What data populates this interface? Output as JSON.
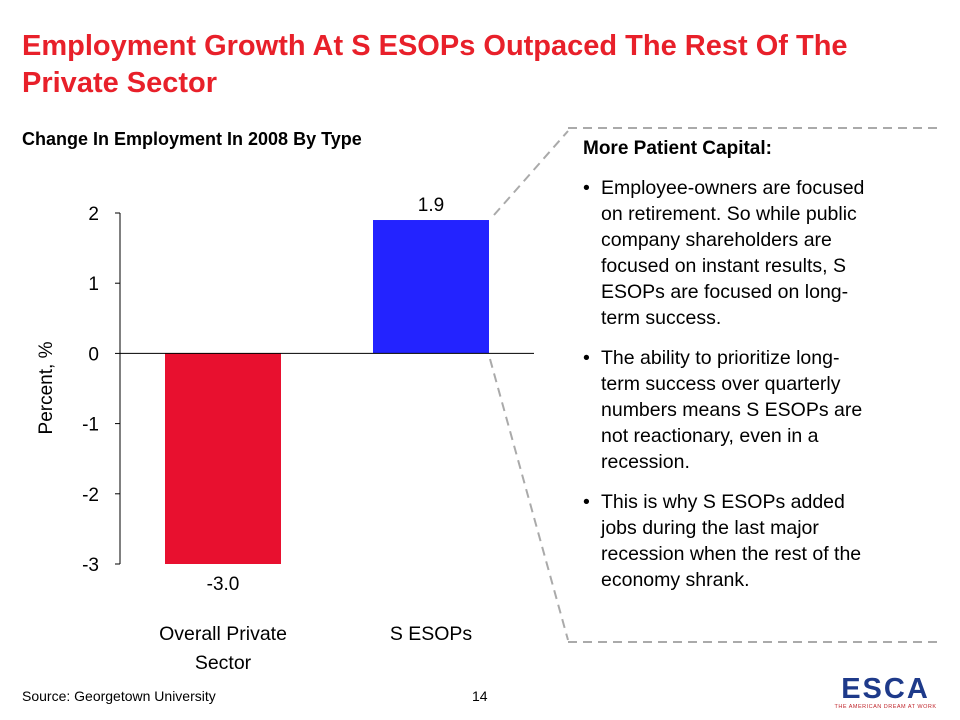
{
  "title": "Employment Growth At S ESOPs Outpaced The Rest Of The Private Sector",
  "chart_title": "Change In Employment In 2008 By Type",
  "chart_data": {
    "type": "bar",
    "title": "Change In Employment In 2008 By Type",
    "categories": [
      "Overall Private Sector",
      "S ESOPs"
    ],
    "values": [
      -3.0,
      1.9
    ],
    "value_labels": [
      "-3.0",
      "1.9"
    ],
    "bar_colors": [
      "#e8102f",
      "#2323ff"
    ],
    "xlabel": "",
    "ylabel": "Percent, %",
    "ylim": [
      -3,
      2
    ],
    "yticks": [
      2,
      1,
      0,
      -1,
      -2,
      -3
    ],
    "grid": false,
    "legend": "none"
  },
  "panel": {
    "heading": "More Patient Capital:",
    "bullet_char": "•",
    "bullets": [
      {
        "lines": [
          "Employee-owners are focused",
          "on retirement. So while public",
          "company shareholders are",
          "focused on instant results, S",
          "ESOPs are focused on long-",
          "term success."
        ]
      },
      {
        "lines": [
          "The ability to prioritize long-",
          "term success over quarterly",
          "numbers means S ESOPs are",
          "not reactionary, even in a",
          "recession."
        ]
      },
      {
        "lines": [
          "This is why S ESOPs added",
          "jobs during the last major",
          "recession when the rest of the",
          "economy shrank."
        ]
      }
    ]
  },
  "footer": {
    "source": "Source: Georgetown University",
    "page_number": "14"
  },
  "logo": {
    "text": "ESCA",
    "tagline": "THE AMERICAN DREAM AT WORK",
    "color": "#1e3a8a",
    "accent": "#c0272d"
  }
}
